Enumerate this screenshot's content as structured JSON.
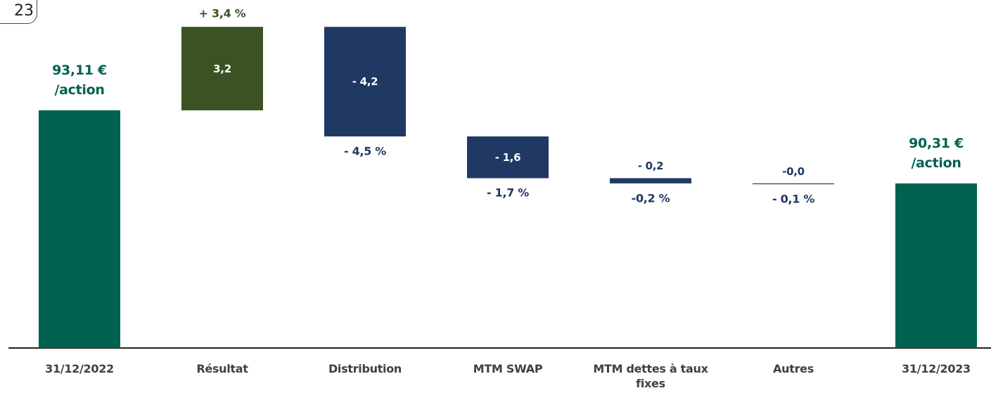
{
  "badge": "23",
  "chart_data": {
    "type": "waterfall",
    "categories": [
      "31/12/2022",
      "Résultat",
      "Distribution",
      "MTM SWAP",
      "MTM dettes à taux fixes",
      "Autres",
      "31/12/2023"
    ],
    "measures": [
      "total",
      "relative",
      "relative",
      "relative",
      "relative",
      "relative",
      "total"
    ],
    "values": [
      93.11,
      3.2,
      -4.2,
      -1.6,
      -0.2,
      0,
      90.31
    ],
    "value_labels": [
      "93,11 €",
      "3,2",
      "- 4,2",
      "- 1,6",
      "- 0,2",
      "-0,0",
      "90,31 €"
    ],
    "total_unit": "/action",
    "pct_labels": [
      null,
      "+ 3,4 %",
      "- 4,5 %",
      "- 1,7 %",
      "-0,2 %",
      "- 0,1 %",
      null
    ],
    "colors": {
      "total": "#006150",
      "increase": "#3b5323",
      "decrease": "#1f3864"
    },
    "ylim": [
      84,
      97.34
    ]
  }
}
